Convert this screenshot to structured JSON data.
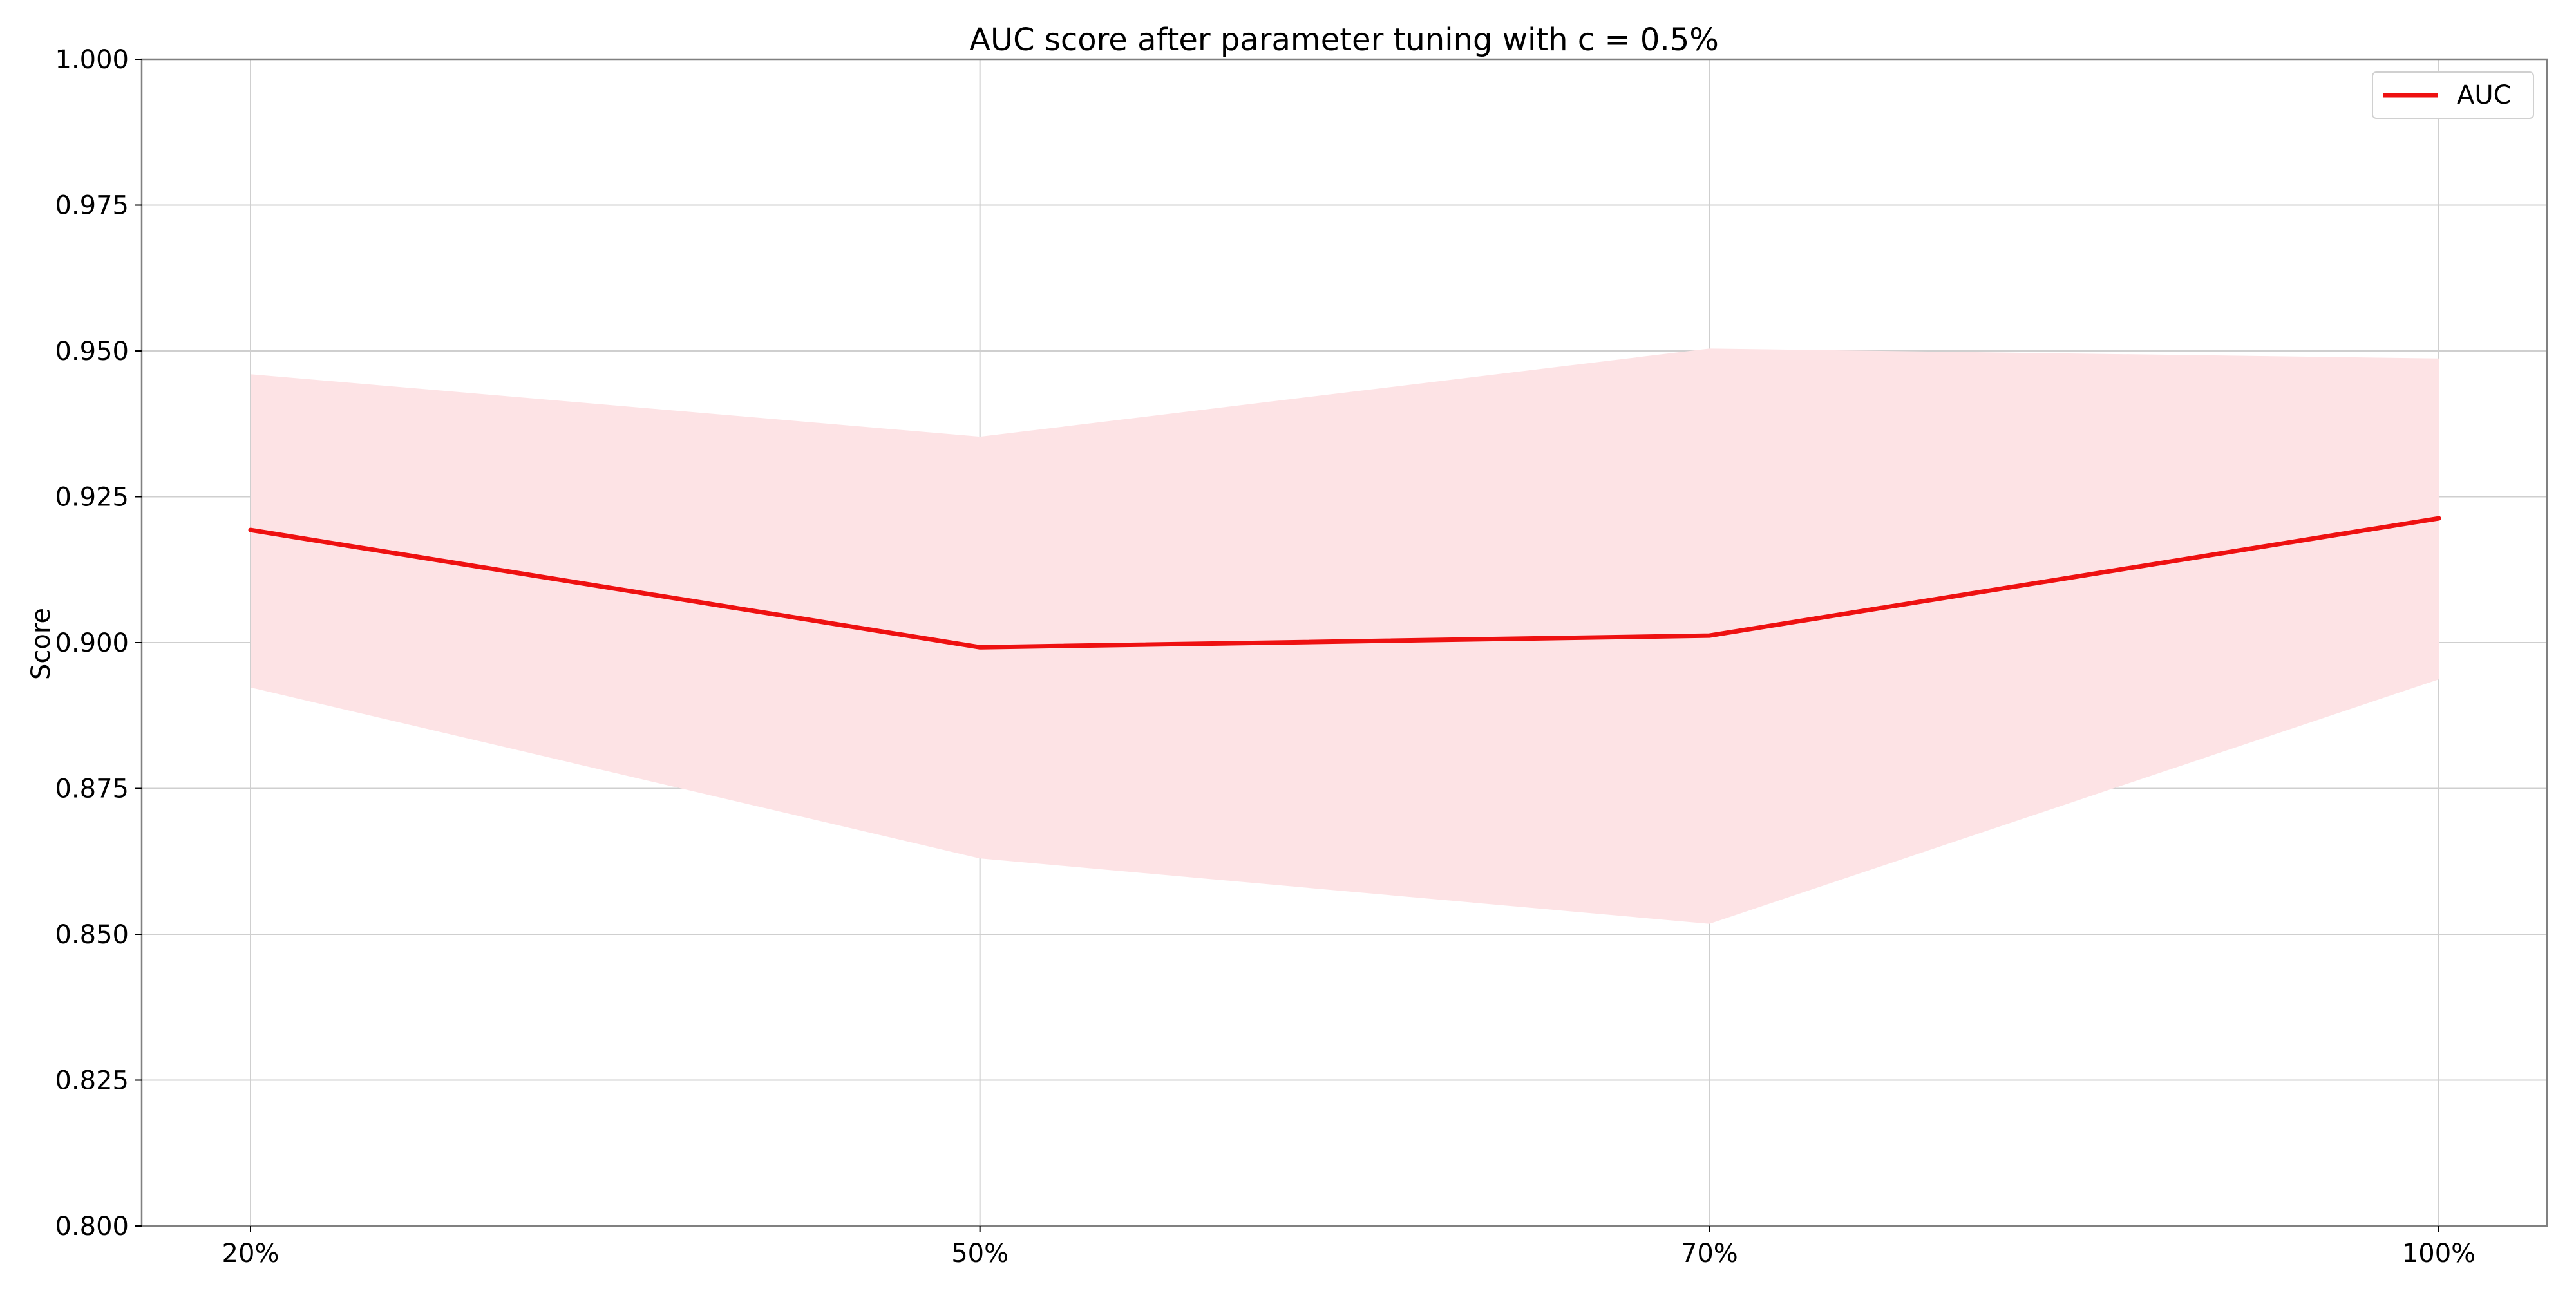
{
  "chart_data": {
    "type": "line",
    "title": "AUC score after parameter tuning with c = 0.5%",
    "xlabel": "",
    "ylabel": "Score",
    "categories": [
      "20%",
      "50%",
      "70%",
      "100%"
    ],
    "series": [
      {
        "name": "AUC",
        "color": "#ee1111",
        "values": [
          0.9193,
          0.8992,
          0.9012,
          0.9213
        ],
        "band_upper": [
          0.946,
          0.9353,
          0.9504,
          0.9487
        ],
        "band_lower": [
          0.8923,
          0.863,
          0.8518,
          0.8937
        ],
        "band_color": "#fde3e5"
      }
    ],
    "ylim": [
      0.8,
      1.0
    ],
    "yticks": [
      "0.800",
      "0.825",
      "0.850",
      "0.875",
      "0.900",
      "0.925",
      "0.950",
      "0.975",
      "1.000"
    ],
    "grid": true,
    "legend_position": "top-right"
  }
}
